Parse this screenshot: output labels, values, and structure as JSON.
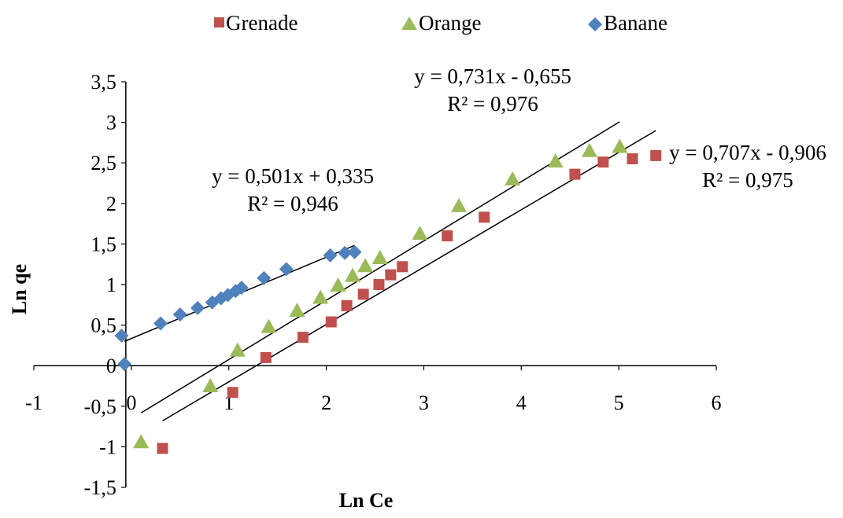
{
  "chart_data": {
    "type": "scatter",
    "title": "",
    "xlabel": "Ln Ce",
    "ylabel": "Ln qe",
    "xlim": [
      -1,
      6
    ],
    "ylim": [
      -1.5,
      3.5
    ],
    "x_ticks": [
      "-1",
      "0",
      "1",
      "2",
      "3",
      "4",
      "5",
      "6"
    ],
    "y_ticks": [
      "-1,5",
      "-1",
      "-0,5",
      "0",
      "0,5",
      "1",
      "1,5",
      "2",
      "2,5",
      "3",
      "3,5"
    ],
    "grid": false,
    "legend_position": "top",
    "legend": [
      "Grenade",
      "Orange",
      "Banane"
    ],
    "series": [
      {
        "name": "Grenade",
        "marker": "square",
        "color": "#C0504D",
        "points": [
          [
            0.32,
            -1.02
          ],
          [
            1.04,
            -0.33
          ],
          [
            1.38,
            0.1
          ],
          [
            1.76,
            0.35
          ],
          [
            2.05,
            0.54
          ],
          [
            2.21,
            0.74
          ],
          [
            2.38,
            0.88
          ],
          [
            2.54,
            1.0
          ],
          [
            2.66,
            1.12
          ],
          [
            2.78,
            1.22
          ],
          [
            3.24,
            1.6
          ],
          [
            3.62,
            1.83
          ],
          [
            4.55,
            2.36
          ],
          [
            4.84,
            2.51
          ],
          [
            5.14,
            2.55
          ],
          [
            5.38,
            2.59
          ]
        ],
        "trendline": {
          "slope": 0.707,
          "intercept": -0.906,
          "x_range": [
            0.32,
            5.38
          ],
          "equation": "y = 0,707x - 0,906",
          "r2": "R² = 0,975"
        }
      },
      {
        "name": "Orange",
        "marker": "triangle",
        "color": "#9BBB59",
        "points": [
          [
            0.1,
            -0.94
          ],
          [
            0.81,
            -0.25
          ],
          [
            1.09,
            0.19
          ],
          [
            1.41,
            0.48
          ],
          [
            1.7,
            0.68
          ],
          [
            1.94,
            0.84
          ],
          [
            2.12,
            0.99
          ],
          [
            2.27,
            1.11
          ],
          [
            2.4,
            1.23
          ],
          [
            2.55,
            1.33
          ],
          [
            2.96,
            1.63
          ],
          [
            3.36,
            1.97
          ],
          [
            3.91,
            2.3
          ],
          [
            4.35,
            2.52
          ],
          [
            4.7,
            2.65
          ],
          [
            5.01,
            2.7
          ]
        ],
        "trendline": {
          "slope": 0.731,
          "intercept": -0.655,
          "x_range": [
            0.1,
            5.01
          ],
          "equation": "y = 0,731x - 0,655",
          "r2": "R² = 0,976"
        }
      },
      {
        "name": "Banane",
        "marker": "diamond",
        "color": "#4F81BD",
        "points": [
          [
            -0.1,
            0.37
          ],
          [
            -0.07,
            0.02
          ],
          [
            0.3,
            0.52
          ],
          [
            0.5,
            0.63
          ],
          [
            0.68,
            0.71
          ],
          [
            0.83,
            0.78
          ],
          [
            0.92,
            0.83
          ],
          [
            0.99,
            0.87
          ],
          [
            1.07,
            0.92
          ],
          [
            1.13,
            0.96
          ],
          [
            1.36,
            1.08
          ],
          [
            1.59,
            1.19
          ],
          [
            2.04,
            1.36
          ],
          [
            2.19,
            1.39
          ],
          [
            2.29,
            1.4
          ]
        ],
        "trendline": {
          "slope": 0.501,
          "intercept": 0.335,
          "x_range": [
            -0.07,
            2.29
          ],
          "equation": "y = 0,501x + 0,335",
          "r2": "R² = 0,946"
        }
      }
    ]
  }
}
